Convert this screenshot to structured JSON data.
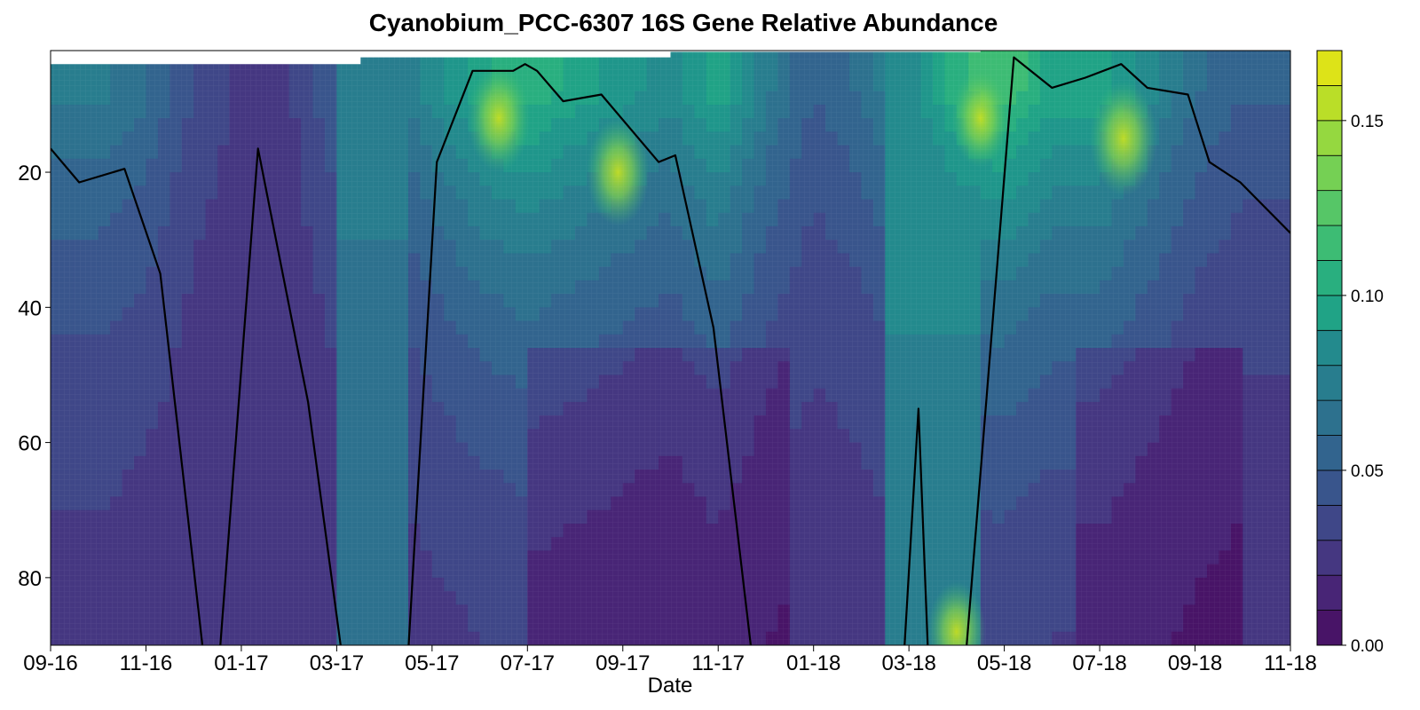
{
  "chart_data": {
    "type": "heatmap",
    "subtype": "filled-contour",
    "title": "Cyanobium_PCC-6307 16S Gene Relative Abundance",
    "xlabel": "Date",
    "ylabel": "",
    "x_ticks": [
      "09-16",
      "11-16",
      "01-17",
      "03-17",
      "05-17",
      "07-17",
      "09-17",
      "11-17",
      "01-18",
      "03-18",
      "05-18",
      "07-18",
      "09-18",
      "11-18"
    ],
    "y_ticks": [
      20,
      40,
      60,
      80
    ],
    "y_range": [
      2,
      90
    ],
    "y_reversed": true,
    "colorbar": {
      "ticks": [
        "0.00",
        "0.05",
        "0.10",
        "0.15"
      ],
      "range": [
        0,
        0.17
      ],
      "levels": 17,
      "colormap": "viridis"
    },
    "x_range_months": [
      0,
      26
    ],
    "surface_top_depth": [
      {
        "x_month": 0,
        "depth": 4
      },
      {
        "x_month": 6.5,
        "depth": 4
      },
      {
        "x_month": 6.5,
        "depth": 3
      },
      {
        "x_month": 13,
        "depth": 3
      },
      {
        "x_month": 13,
        "depth": 2.2
      },
      {
        "x_month": 19.5,
        "depth": 2.2
      },
      {
        "x_month": 19.5,
        "depth": 1
      },
      {
        "x_month": 26,
        "depth": 1
      }
    ],
    "hotspots": [
      {
        "x_month": 9.4,
        "depth": 12,
        "value": 0.14
      },
      {
        "x_month": 11.9,
        "depth": 20,
        "value": 0.14
      },
      {
        "x_month": 19.5,
        "depth": 12,
        "value": 0.13
      },
      {
        "x_month": 22.5,
        "depth": 15,
        "value": 0.15
      },
      {
        "x_month": 19.0,
        "depth": 88,
        "value": 0.13
      }
    ],
    "series": [
      {
        "type": "line",
        "color": "#000000",
        "points": [
          {
            "x_month": 0.0,
            "depth": 16.5
          },
          {
            "x_month": 0.6,
            "depth": 21.5
          },
          {
            "x_month": 1.55,
            "depth": 19.5
          },
          {
            "x_month": 2.3,
            "depth": 35
          },
          {
            "x_month": 3.2,
            "depth": 91
          },
          {
            "x_month": 3.55,
            "depth": 91
          },
          {
            "x_month": 4.35,
            "depth": 16.5
          },
          {
            "x_month": 5.4,
            "depth": 54
          },
          {
            "x_month": 6.1,
            "depth": 91
          },
          {
            "x_month": 7.5,
            "depth": 91
          },
          {
            "x_month": 8.1,
            "depth": 18.5
          },
          {
            "x_month": 8.85,
            "depth": 5
          },
          {
            "x_month": 9.7,
            "depth": 5
          },
          {
            "x_month": 9.95,
            "depth": 4
          },
          {
            "x_month": 10.2,
            "depth": 5
          },
          {
            "x_month": 10.75,
            "depth": 9.5
          },
          {
            "x_month": 11.55,
            "depth": 8.5
          },
          {
            "x_month": 12.75,
            "depth": 18.5
          },
          {
            "x_month": 13.1,
            "depth": 17.5
          },
          {
            "x_month": 13.9,
            "depth": 43
          },
          {
            "x_month": 14.7,
            "depth": 91
          },
          {
            "x_month": 17.9,
            "depth": 91
          },
          {
            "x_month": 18.2,
            "depth": 55
          },
          {
            "x_month": 18.4,
            "depth": 91
          },
          {
            "x_month": 19.2,
            "depth": 91
          },
          {
            "x_month": 20.2,
            "depth": 3
          },
          {
            "x_month": 21.0,
            "depth": 7.5
          },
          {
            "x_month": 21.7,
            "depth": 6
          },
          {
            "x_month": 22.45,
            "depth": 4
          },
          {
            "x_month": 23.0,
            "depth": 7.5
          },
          {
            "x_month": 23.85,
            "depth": 8.5
          },
          {
            "x_month": 24.3,
            "depth": 18.5
          },
          {
            "x_month": 24.95,
            "depth": 21.5
          },
          {
            "x_month": 26.0,
            "depth": 29
          }
        ]
      }
    ]
  }
}
